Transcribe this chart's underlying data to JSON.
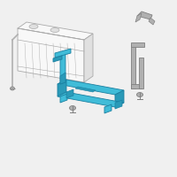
{
  "background_color": "#f0f0f0",
  "tray_color": "#40bcd8",
  "tray_outline": "#1a7fa0",
  "tray_dark": "#2a9ab8",
  "parts_color": "#b0b0b0",
  "parts_outline": "#808080",
  "battery_outline": "#aaaaaa",
  "battery_fill": "#f8f8f8",
  "battery_side": "#e0e0e0"
}
